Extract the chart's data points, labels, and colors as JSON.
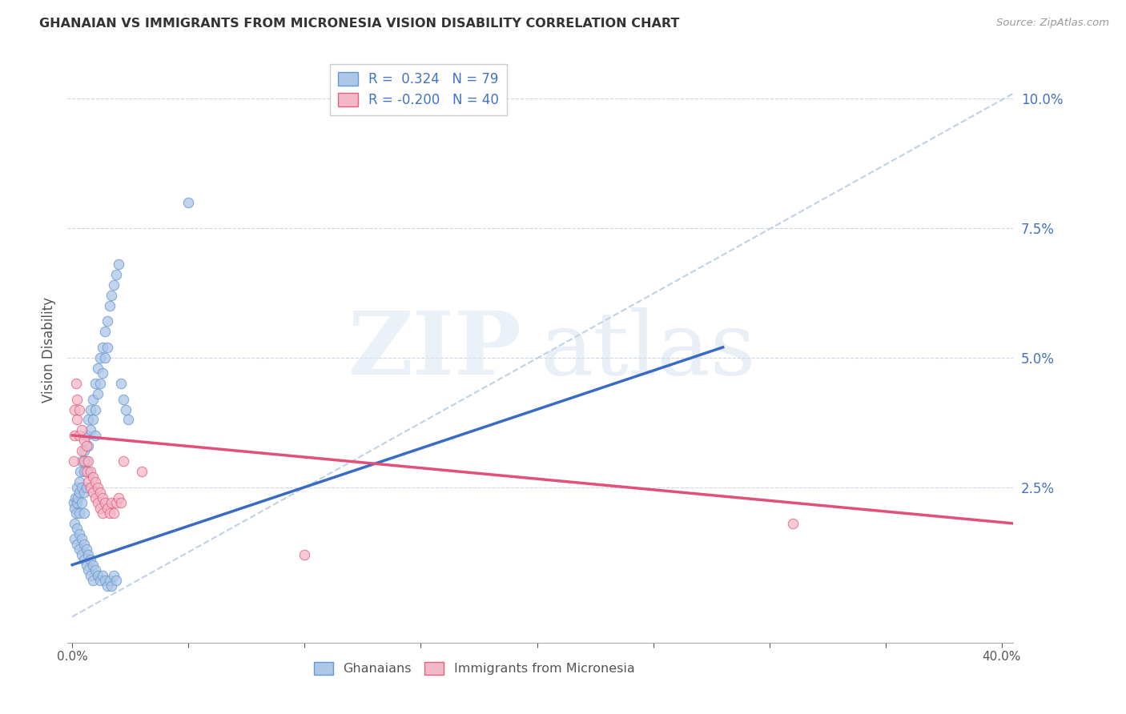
{
  "title": "GHANAIAN VS IMMIGRANTS FROM MICRONESIA VISION DISABILITY CORRELATION CHART",
  "source": "Source: ZipAtlas.com",
  "ylabel": "Vision Disability",
  "ytick_labels": [
    "2.5%",
    "5.0%",
    "7.5%",
    "10.0%"
  ],
  "ytick_values": [
    0.025,
    0.05,
    0.075,
    0.1
  ],
  "xlim": [
    -0.002,
    0.405
  ],
  "ylim": [
    -0.005,
    0.108
  ],
  "color_ghanaian_fill": "#aec6e8",
  "color_ghanaian_edge": "#6699cc",
  "color_micronesia_fill": "#f4b8c8",
  "color_micronesia_edge": "#e06080",
  "color_blue_line": "#3a6bc4",
  "color_pink_line": "#e0507a",
  "color_blue_text": "#4472c4",
  "color_dash_line": "#b8cce4",
  "watermark_zip_color": "#d0dff0",
  "watermark_atlas_color": "#c8d8ee",
  "legend_items": [
    {
      "label": "R =  0.324   N = 79",
      "fill": "#aec6e8",
      "edge": "#6699cc"
    },
    {
      "label": "R = -0.200   N = 40",
      "fill": "#f4b8c8",
      "edge": "#e06080"
    }
  ],
  "bottom_legend": [
    "Ghanaians",
    "Immigrants from Micronesia"
  ],
  "ghanaian_x": [
    0.0005,
    0.001,
    0.0012,
    0.0015,
    0.002,
    0.002,
    0.0025,
    0.003,
    0.003,
    0.003,
    0.0035,
    0.004,
    0.004,
    0.004,
    0.005,
    0.005,
    0.005,
    0.005,
    0.006,
    0.006,
    0.006,
    0.007,
    0.007,
    0.007,
    0.008,
    0.008,
    0.009,
    0.009,
    0.01,
    0.01,
    0.01,
    0.011,
    0.011,
    0.012,
    0.012,
    0.013,
    0.013,
    0.014,
    0.014,
    0.015,
    0.015,
    0.016,
    0.017,
    0.018,
    0.019,
    0.02,
    0.021,
    0.022,
    0.023,
    0.024,
    0.001,
    0.001,
    0.002,
    0.002,
    0.003,
    0.003,
    0.004,
    0.004,
    0.005,
    0.005,
    0.006,
    0.006,
    0.007,
    0.007,
    0.008,
    0.008,
    0.009,
    0.009,
    0.01,
    0.011,
    0.012,
    0.013,
    0.014,
    0.015,
    0.016,
    0.017,
    0.018,
    0.019,
    0.05
  ],
  "ghanaian_y": [
    0.022,
    0.021,
    0.023,
    0.02,
    0.022,
    0.025,
    0.023,
    0.024,
    0.026,
    0.02,
    0.028,
    0.03,
    0.025,
    0.022,
    0.032,
    0.028,
    0.024,
    0.02,
    0.035,
    0.03,
    0.025,
    0.038,
    0.033,
    0.028,
    0.04,
    0.036,
    0.042,
    0.038,
    0.045,
    0.04,
    0.035,
    0.048,
    0.043,
    0.05,
    0.045,
    0.052,
    0.047,
    0.055,
    0.05,
    0.057,
    0.052,
    0.06,
    0.062,
    0.064,
    0.066,
    0.068,
    0.045,
    0.042,
    0.04,
    0.038,
    0.018,
    0.015,
    0.017,
    0.014,
    0.016,
    0.013,
    0.015,
    0.012,
    0.014,
    0.011,
    0.013,
    0.01,
    0.012,
    0.009,
    0.011,
    0.008,
    0.01,
    0.007,
    0.009,
    0.008,
    0.007,
    0.008,
    0.007,
    0.006,
    0.007,
    0.006,
    0.008,
    0.007,
    0.08
  ],
  "micronesia_x": [
    0.0005,
    0.001,
    0.001,
    0.0015,
    0.002,
    0.002,
    0.003,
    0.003,
    0.004,
    0.004,
    0.005,
    0.005,
    0.006,
    0.006,
    0.007,
    0.007,
    0.008,
    0.008,
    0.009,
    0.009,
    0.01,
    0.01,
    0.011,
    0.011,
    0.012,
    0.012,
    0.013,
    0.013,
    0.014,
    0.015,
    0.016,
    0.017,
    0.018,
    0.019,
    0.02,
    0.021,
    0.022,
    0.03,
    0.1,
    0.31
  ],
  "micronesia_y": [
    0.03,
    0.035,
    0.04,
    0.045,
    0.038,
    0.042,
    0.035,
    0.04,
    0.032,
    0.036,
    0.03,
    0.034,
    0.028,
    0.033,
    0.026,
    0.03,
    0.025,
    0.028,
    0.024,
    0.027,
    0.023,
    0.026,
    0.022,
    0.025,
    0.021,
    0.024,
    0.02,
    0.023,
    0.022,
    0.021,
    0.02,
    0.022,
    0.02,
    0.022,
    0.023,
    0.022,
    0.03,
    0.028,
    0.012,
    0.018
  ],
  "blue_line_x0": 0.0,
  "blue_line_y0": 0.01,
  "blue_line_x1": 0.28,
  "blue_line_y1": 0.052,
  "pink_line_x0": 0.0,
  "pink_line_y0": 0.035,
  "pink_line_x1": 0.405,
  "pink_line_y1": 0.018,
  "dash_line_x0": 0.0,
  "dash_line_y0": 0.0,
  "dash_line_x1": 0.405,
  "dash_line_y1": 0.101
}
